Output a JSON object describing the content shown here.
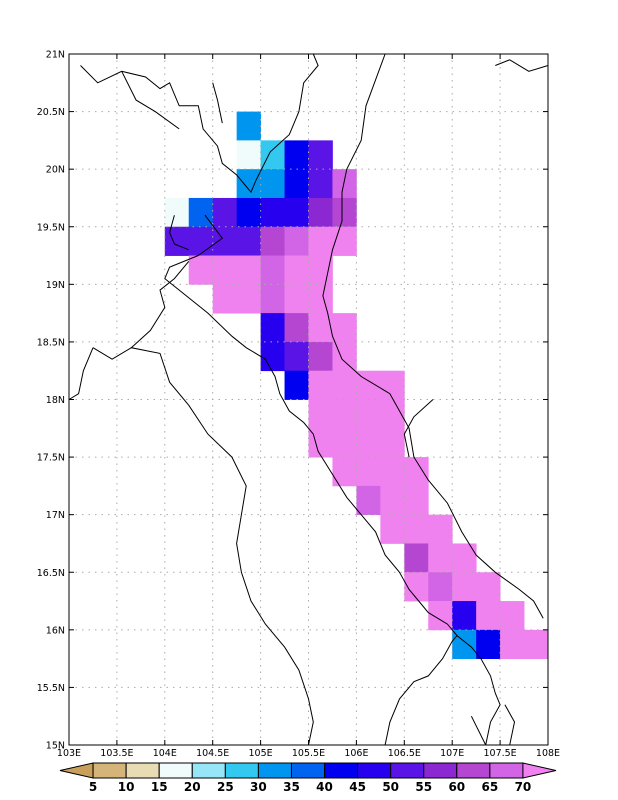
{
  "map": {
    "lon_range": [
      103,
      108
    ],
    "lat_range": [
      15,
      21
    ],
    "grid_lines": true,
    "lon_step": 0.5,
    "lat_step": 0.5,
    "x_tick_labels": [
      "103E",
      "103.5E",
      "104E",
      "104.5E",
      "105E",
      "105.5E",
      "106E",
      "106.5E",
      "107E",
      "107.5E",
      "108E"
    ],
    "y_tick_labels": [
      "15N",
      "15.5N",
      "16N",
      "16.5N",
      "17N",
      "17.5N",
      "18N",
      "18.5N",
      "19N",
      "19.5N",
      "20N",
      "20.5N",
      "21N"
    ],
    "cell_size_deg": 0.25
  },
  "colorbar": {
    "labels": [
      "5",
      "10",
      "15",
      "20",
      "25",
      "30",
      "35",
      "40",
      "45",
      "50",
      "55",
      "60",
      "65",
      "70"
    ],
    "colors": [
      "#c8a05a",
      "#d4b478",
      "#e8dcb4",
      "#f0fcfc",
      "#96e6f8",
      "#32c8f0",
      "#0096f0",
      "#0064f0",
      "#0000f0",
      "#2800f0",
      "#5a14e6",
      "#8c28d2",
      "#b446d2",
      "#d264e6",
      "#f082f0"
    ]
  },
  "grid_cells": [
    {
      "lon": 104.75,
      "lat": 20.25,
      "c": "#0096f0"
    },
    {
      "lon": 104.75,
      "lat": 20.0,
      "c": "#f0fcfc"
    },
    {
      "lon": 105.0,
      "lat": 20.0,
      "c": "#32c8f0"
    },
    {
      "lon": 105.25,
      "lat": 20.0,
      "c": "#0000f0"
    },
    {
      "lon": 105.5,
      "lat": 20.0,
      "c": "#5a14e6"
    },
    {
      "lon": 104.75,
      "lat": 19.75,
      "c": "#0096f0"
    },
    {
      "lon": 105.0,
      "lat": 19.75,
      "c": "#0096f0"
    },
    {
      "lon": 105.25,
      "lat": 19.75,
      "c": "#0000f0"
    },
    {
      "lon": 105.5,
      "lat": 19.75,
      "c": "#5a14e6"
    },
    {
      "lon": 105.75,
      "lat": 19.75,
      "c": "#d264e6"
    },
    {
      "lon": 104.0,
      "lat": 19.5,
      "c": "#f0fcfc"
    },
    {
      "lon": 104.25,
      "lat": 19.5,
      "c": "#0064f0"
    },
    {
      "lon": 104.5,
      "lat": 19.5,
      "c": "#5a14e6"
    },
    {
      "lon": 104.75,
      "lat": 19.5,
      "c": "#0000f0"
    },
    {
      "lon": 105.0,
      "lat": 19.5,
      "c": "#2800f0"
    },
    {
      "lon": 105.25,
      "lat": 19.5,
      "c": "#2800f0"
    },
    {
      "lon": 105.5,
      "lat": 19.5,
      "c": "#8c28d2"
    },
    {
      "lon": 105.75,
      "lat": 19.5,
      "c": "#b446d2"
    },
    {
      "lon": 104.0,
      "lat": 19.25,
      "c": "#5a14e6"
    },
    {
      "lon": 104.25,
      "lat": 19.25,
      "c": "#5a14e6"
    },
    {
      "lon": 104.5,
      "lat": 19.25,
      "c": "#5a14e6"
    },
    {
      "lon": 104.75,
      "lat": 19.25,
      "c": "#5a14e6"
    },
    {
      "lon": 105.0,
      "lat": 19.25,
      "c": "#b446d2"
    },
    {
      "lon": 105.25,
      "lat": 19.25,
      "c": "#d264e6"
    },
    {
      "lon": 105.5,
      "lat": 19.25,
      "c": "#f082f0"
    },
    {
      "lon": 105.75,
      "lat": 19.25,
      "c": "#f082f0"
    },
    {
      "lon": 104.25,
      "lat": 19.0,
      "c": "#f082f0"
    },
    {
      "lon": 104.5,
      "lat": 19.0,
      "c": "#f082f0"
    },
    {
      "lon": 104.75,
      "lat": 19.0,
      "c": "#f082f0"
    },
    {
      "lon": 105.0,
      "lat": 19.0,
      "c": "#d264e6"
    },
    {
      "lon": 105.25,
      "lat": 19.0,
      "c": "#f082f0"
    },
    {
      "lon": 105.5,
      "lat": 19.0,
      "c": "#f082f0"
    },
    {
      "lon": 104.5,
      "lat": 18.75,
      "c": "#f082f0"
    },
    {
      "lon": 104.75,
      "lat": 18.75,
      "c": "#f082f0"
    },
    {
      "lon": 105.0,
      "lat": 18.75,
      "c": "#d264e6"
    },
    {
      "lon": 105.25,
      "lat": 18.75,
      "c": "#f082f0"
    },
    {
      "lon": 105.5,
      "lat": 18.75,
      "c": "#f082f0"
    },
    {
      "lon": 105.0,
      "lat": 18.5,
      "c": "#2800f0"
    },
    {
      "lon": 105.25,
      "lat": 18.5,
      "c": "#b446d2"
    },
    {
      "lon": 105.5,
      "lat": 18.5,
      "c": "#f082f0"
    },
    {
      "lon": 105.75,
      "lat": 18.5,
      "c": "#f082f0"
    },
    {
      "lon": 105.0,
      "lat": 18.25,
      "c": "#2800f0"
    },
    {
      "lon": 105.25,
      "lat": 18.25,
      "c": "#5a14e6"
    },
    {
      "lon": 105.5,
      "lat": 18.25,
      "c": "#b446d2"
    },
    {
      "lon": 105.75,
      "lat": 18.25,
      "c": "#f082f0"
    },
    {
      "lon": 105.25,
      "lat": 18.0,
      "c": "#0000f0"
    },
    {
      "lon": 105.5,
      "lat": 18.0,
      "c": "#f082f0"
    },
    {
      "lon": 105.75,
      "lat": 18.0,
      "c": "#f082f0"
    },
    {
      "lon": 106.0,
      "lat": 18.0,
      "c": "#f082f0"
    },
    {
      "lon": 106.25,
      "lat": 18.0,
      "c": "#f082f0"
    },
    {
      "lon": 105.5,
      "lat": 17.75,
      "c": "#f082f0"
    },
    {
      "lon": 105.75,
      "lat": 17.75,
      "c": "#f082f0"
    },
    {
      "lon": 106.0,
      "lat": 17.75,
      "c": "#f082f0"
    },
    {
      "lon": 106.25,
      "lat": 17.75,
      "c": "#f082f0"
    },
    {
      "lon": 105.5,
      "lat": 17.5,
      "c": "#f082f0"
    },
    {
      "lon": 105.75,
      "lat": 17.5,
      "c": "#f082f0"
    },
    {
      "lon": 106.0,
      "lat": 17.5,
      "c": "#f082f0"
    },
    {
      "lon": 106.25,
      "lat": 17.5,
      "c": "#f082f0"
    },
    {
      "lon": 105.75,
      "lat": 17.25,
      "c": "#f082f0"
    },
    {
      "lon": 106.0,
      "lat": 17.25,
      "c": "#f082f0"
    },
    {
      "lon": 106.25,
      "lat": 17.25,
      "c": "#f082f0"
    },
    {
      "lon": 106.5,
      "lat": 17.25,
      "c": "#f082f0"
    },
    {
      "lon": 106.0,
      "lat": 17.0,
      "c": "#d264e6"
    },
    {
      "lon": 106.25,
      "lat": 17.0,
      "c": "#f082f0"
    },
    {
      "lon": 106.5,
      "lat": 17.0,
      "c": "#f082f0"
    },
    {
      "lon": 106.25,
      "lat": 16.75,
      "c": "#f082f0"
    },
    {
      "lon": 106.5,
      "lat": 16.75,
      "c": "#f082f0"
    },
    {
      "lon": 106.75,
      "lat": 16.75,
      "c": "#f082f0"
    },
    {
      "lon": 106.5,
      "lat": 16.5,
      "c": "#b446d2"
    },
    {
      "lon": 106.75,
      "lat": 16.5,
      "c": "#f082f0"
    },
    {
      "lon": 107.0,
      "lat": 16.5,
      "c": "#f082f0"
    },
    {
      "lon": 106.5,
      "lat": 16.25,
      "c": "#f082f0"
    },
    {
      "lon": 106.75,
      "lat": 16.25,
      "c": "#d264e6"
    },
    {
      "lon": 107.0,
      "lat": 16.25,
      "c": "#f082f0"
    },
    {
      "lon": 107.25,
      "lat": 16.25,
      "c": "#f082f0"
    },
    {
      "lon": 106.75,
      "lat": 16.0,
      "c": "#f082f0"
    },
    {
      "lon": 107.0,
      "lat": 16.0,
      "c": "#2800f0"
    },
    {
      "lon": 107.25,
      "lat": 16.0,
      "c": "#f082f0"
    },
    {
      "lon": 107.5,
      "lat": 16.0,
      "c": "#f082f0"
    },
    {
      "lon": 107.0,
      "lat": 15.75,
      "c": "#0096f0"
    },
    {
      "lon": 107.25,
      "lat": 15.75,
      "c": "#0000f0"
    },
    {
      "lon": 107.5,
      "lat": 15.75,
      "c": "#f082f0"
    },
    {
      "lon": 107.75,
      "lat": 15.75,
      "c": "#f082f0"
    }
  ],
  "coastline": [
    [
      [
        103.12,
        20.9
      ],
      [
        103.3,
        20.75
      ],
      [
        103.55,
        20.85
      ],
      [
        103.8,
        20.8
      ],
      [
        103.95,
        20.7
      ],
      [
        104.05,
        20.75
      ],
      [
        104.15,
        20.55
      ],
      [
        104.35,
        20.55
      ],
      [
        104.4,
        20.35
      ],
      [
        104.55,
        20.2
      ],
      [
        104.6,
        20.05
      ],
      [
        104.75,
        19.95
      ],
      [
        104.9,
        19.8
      ],
      [
        104.95,
        19.9
      ],
      [
        105.1,
        20.15
      ],
      [
        105.3,
        20.3
      ],
      [
        105.4,
        20.5
      ],
      [
        105.45,
        20.75
      ],
      [
        105.6,
        20.9
      ],
      [
        105.55,
        21.0
      ]
    ],
    [
      [
        106.3,
        21.0
      ],
      [
        106.1,
        20.55
      ],
      [
        106.05,
        20.25
      ],
      [
        105.9,
        20.0
      ],
      [
        105.85,
        19.8
      ],
      [
        105.85,
        19.55
      ],
      [
        105.75,
        19.3
      ],
      [
        105.7,
        19.1
      ],
      [
        105.65,
        18.9
      ],
      [
        105.7,
        18.75
      ],
      [
        105.75,
        18.55
      ],
      [
        105.85,
        18.35
      ],
      [
        106.05,
        18.2
      ],
      [
        106.35,
        18.05
      ],
      [
        106.55,
        17.75
      ],
      [
        106.6,
        17.5
      ],
      [
        106.75,
        17.3
      ],
      [
        106.95,
        17.1
      ],
      [
        107.1,
        16.85
      ],
      [
        107.25,
        16.65
      ],
      [
        107.45,
        16.5
      ],
      [
        107.7,
        16.35
      ],
      [
        107.85,
        16.25
      ],
      [
        107.95,
        16.1
      ]
    ],
    [
      [
        106.8,
        18.0
      ],
      [
        106.6,
        17.85
      ],
      [
        106.5,
        17.7
      ],
      [
        106.55,
        17.5
      ]
    ],
    [
      [
        107.45,
        20.9
      ],
      [
        107.6,
        20.95
      ],
      [
        107.8,
        20.85
      ],
      [
        108.0,
        20.9
      ]
    ]
  ],
  "borders": [
    [
      [
        104.42,
        19.6
      ],
      [
        104.6,
        19.4
      ],
      [
        104.35,
        19.25
      ],
      [
        104.05,
        19.15
      ],
      [
        104.0,
        19.05
      ],
      [
        104.15,
        18.95
      ],
      [
        104.45,
        18.75
      ],
      [
        104.7,
        18.55
      ],
      [
        104.85,
        18.45
      ],
      [
        105.05,
        18.35
      ],
      [
        105.15,
        18.2
      ],
      [
        105.2,
        18.05
      ],
      [
        105.3,
        17.9
      ],
      [
        105.45,
        17.8
      ],
      [
        105.55,
        17.7
      ],
      [
        105.6,
        17.55
      ],
      [
        105.75,
        17.35
      ],
      [
        105.9,
        17.15
      ],
      [
        106.05,
        17.0
      ],
      [
        106.2,
        16.85
      ],
      [
        106.3,
        16.65
      ],
      [
        106.45,
        16.5
      ],
      [
        106.55,
        16.35
      ],
      [
        106.65,
        16.25
      ],
      [
        106.75,
        16.15
      ],
      [
        106.85,
        16.1
      ],
      [
        106.95,
        16.05
      ],
      [
        107.05,
        15.95
      ],
      [
        107.2,
        15.85
      ],
      [
        107.3,
        15.75
      ],
      [
        107.4,
        15.6
      ],
      [
        107.45,
        15.45
      ],
      [
        107.5,
        15.35
      ],
      [
        107.4,
        15.2
      ],
      [
        107.35,
        15.0
      ]
    ],
    [
      [
        104.1,
        19.6
      ],
      [
        104.05,
        19.45
      ],
      [
        104.1,
        19.35
      ],
      [
        104.25,
        19.3
      ]
    ],
    [
      [
        103.25,
        18.45
      ],
      [
        103.45,
        18.35
      ],
      [
        103.65,
        18.45
      ],
      [
        103.95,
        18.4
      ],
      [
        104.05,
        18.15
      ],
      [
        104.25,
        17.95
      ],
      [
        104.45,
        17.7
      ],
      [
        104.7,
        17.5
      ],
      [
        104.85,
        17.25
      ],
      [
        104.8,
        17.0
      ],
      [
        104.75,
        16.75
      ],
      [
        104.8,
        16.5
      ],
      [
        104.9,
        16.25
      ],
      [
        105.05,
        16.05
      ],
      [
        105.25,
        15.85
      ],
      [
        105.4,
        15.65
      ],
      [
        105.5,
        15.4
      ],
      [
        105.55,
        15.2
      ],
      [
        105.5,
        15.0
      ]
    ],
    [
      [
        103.0,
        18.0
      ],
      [
        103.1,
        18.05
      ],
      [
        103.15,
        18.25
      ],
      [
        103.25,
        18.45
      ]
    ],
    [
      [
        106.3,
        15.0
      ],
      [
        106.35,
        15.2
      ],
      [
        106.45,
        15.4
      ],
      [
        106.6,
        15.55
      ],
      [
        106.75,
        15.6
      ],
      [
        106.9,
        15.75
      ],
      [
        107.0,
        15.9
      ],
      [
        107.05,
        15.95
      ]
    ],
    [
      [
        107.6,
        15.0
      ],
      [
        107.65,
        15.2
      ],
      [
        107.55,
        15.35
      ]
    ],
    [
      [
        103.55,
        20.85
      ],
      [
        103.7,
        20.6
      ],
      [
        103.9,
        20.5
      ],
      [
        104.15,
        20.35
      ]
    ],
    [
      [
        104.5,
        20.75
      ],
      [
        104.55,
        20.6
      ],
      [
        104.6,
        20.4
      ]
    ],
    [
      [
        107.35,
        15.0
      ],
      [
        107.2,
        15.25
      ]
    ],
    [
      [
        104.25,
        19.2
      ],
      [
        104.1,
        19.05
      ],
      [
        103.95,
        18.95
      ],
      [
        104.0,
        18.8
      ],
      [
        103.85,
        18.6
      ],
      [
        103.65,
        18.45
      ]
    ]
  ]
}
